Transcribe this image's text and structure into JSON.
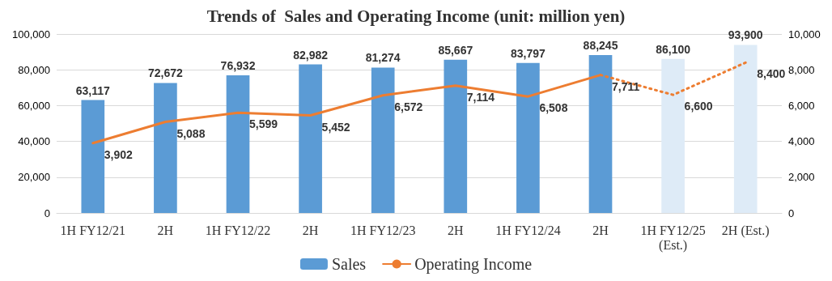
{
  "chart_data": {
    "type": "bar",
    "title": "Trends of  Sales and Operating Income (unit: million yen)",
    "categories": [
      "1H FY12/21",
      "2H",
      "1H FY12/22",
      "2H",
      "1H FY12/23",
      "2H",
      "1H FY12/24",
      "2H",
      "1H FY12/25\n(Est.)",
      "2H (Est.)"
    ],
    "series": [
      {
        "name": "Sales",
        "color": "#5b9bd5",
        "colors": [
          "#5b9bd5",
          "#5b9bd5",
          "#5b9bd5",
          "#5b9bd5",
          "#5b9bd5",
          "#5b9bd5",
          "#5b9bd5",
          "#5b9bd5",
          "#deebf7",
          "#deebf7"
        ],
        "values": [
          63117,
          72672,
          76932,
          82982,
          81274,
          85667,
          83797,
          88245,
          86100,
          93900
        ],
        "value_labels": [
          "63,117",
          "72,672",
          "76,932",
          "82,982",
          "81,274",
          "85,667",
          "83,797",
          "88,245",
          "86,100",
          "93,900"
        ]
      },
      {
        "name": "Operating Income",
        "type": "line",
        "axis": "y2",
        "color": "#ed7d31",
        "line_style": "solid",
        "values": [
          3902,
          5088,
          5599,
          5452,
          6572,
          7114,
          6508,
          7711,
          null,
          null
        ],
        "value_labels": [
          "3,902",
          "5,088",
          "5,599",
          "5,452",
          "6,572",
          "7,114",
          "6,508",
          "7,711",
          null,
          null
        ]
      },
      {
        "type": "line",
        "axis": "y2",
        "color": "#ed7d31",
        "line_style": "dotted",
        "values": [
          null,
          null,
          null,
          null,
          null,
          null,
          null,
          7711,
          6600,
          8400
        ],
        "value_labels": [
          null,
          null,
          null,
          null,
          null,
          null,
          null,
          null,
          "6,600",
          "8,400"
        ]
      }
    ],
    "ylim": [
      0,
      100000
    ],
    "yticks": [
      {
        "value": 0,
        "label": "0"
      },
      {
        "value": 20000,
        "label": "20,000"
      },
      {
        "value": 40000,
        "label": "40,000"
      },
      {
        "value": 60000,
        "label": "60,000"
      },
      {
        "value": 80000,
        "label": "80,000"
      },
      {
        "value": 100000,
        "label": "100,000"
      }
    ],
    "y2lim": [
      0,
      10000
    ],
    "y2ticks": [
      {
        "value": 0,
        "label": "0"
      },
      {
        "value": 2000,
        "label": "2,000"
      },
      {
        "value": 4000,
        "label": "4,000"
      },
      {
        "value": 6000,
        "label": "6,000"
      },
      {
        "value": 8000,
        "label": "8,000"
      },
      {
        "value": 10000,
        "label": "10,000"
      }
    ],
    "grid": "y",
    "legend": "bottom",
    "marker": "none"
  }
}
